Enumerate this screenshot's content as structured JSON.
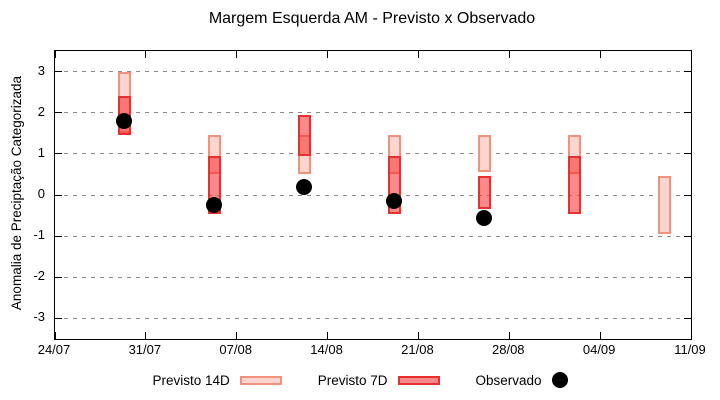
{
  "title": "Margem Esquerda AM - Previsto x Observado",
  "colors": {
    "forecast14_fill": "#fcd5ce",
    "forecast14_border": "#f1917e",
    "forecast7_fill": "rgba(249,42,42,0.55)",
    "forecast7_border": "#e93030",
    "observed": "#000000",
    "grid": "#8a8a8a",
    "axis": "#000000"
  },
  "chart_data": {
    "type": "bar",
    "subtype": "floating-range-boxes-with-points",
    "title": "Margem Esquerda AM - Previsto x Observado",
    "xlabel": "",
    "ylabel": "Anomalia de Preciptação Categorizada",
    "ylim": [
      -3.5,
      3.5
    ],
    "yticks": [
      3,
      2,
      1,
      0,
      -1,
      -2,
      -3
    ],
    "xticks": [
      "24/07",
      "31/07",
      "07/08",
      "14/08",
      "21/08",
      "28/08",
      "04/09",
      "11/09"
    ],
    "grid": "horizontal dashed",
    "legend_position": "bottom",
    "series": [
      {
        "name": "Previsto 14D",
        "type": "range-box"
      },
      {
        "name": "Previsto 7D",
        "type": "range-box"
      },
      {
        "name": "Observado",
        "type": "point"
      }
    ],
    "clusters": [
      {
        "date": "29/07",
        "previsto14": [
          1.5,
          3.0
        ],
        "previsto7": [
          1.45,
          2.4
        ],
        "observado": 1.8
      },
      {
        "date": "05/08",
        "previsto14": [
          0.5,
          1.45
        ],
        "previsto7": [
          -0.45,
          0.95
        ],
        "observado": -0.25
      },
      {
        "date": "12/08",
        "previsto14": [
          0.5,
          1.45
        ],
        "previsto7": [
          0.95,
          1.95
        ],
        "observado": 0.2
      },
      {
        "date": "19/08",
        "previsto14": [
          0.5,
          1.45
        ],
        "previsto7": [
          -0.45,
          0.95
        ],
        "observado": -0.15
      },
      {
        "date": "26/08",
        "previsto14": [
          0.55,
          1.45
        ],
        "previsto7": [
          -0.35,
          0.45
        ],
        "observado": -0.55
      },
      {
        "date": "02/09",
        "previsto14": [
          0.5,
          1.45
        ],
        "previsto7": [
          -0.45,
          0.95
        ],
        "observado": null
      },
      {
        "date": "09/09",
        "previsto14": [
          -0.95,
          0.45
        ],
        "previsto7": null,
        "observado": null
      }
    ]
  }
}
